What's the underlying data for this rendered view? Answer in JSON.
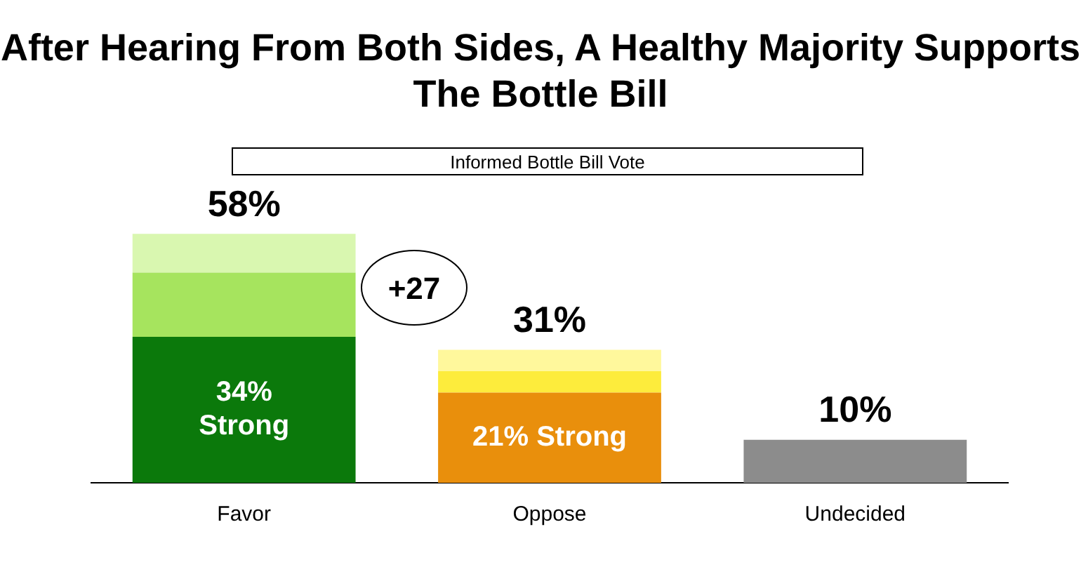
{
  "chart_data": {
    "type": "bar",
    "title": "After Hearing From Both Sides, A Healthy Majority Supports The Bottle Bill",
    "subtitle": "Informed Bottle Bill Vote",
    "categories": [
      "Favor",
      "Oppose",
      "Undecided"
    ],
    "stacked": true,
    "series": [
      {
        "colors": [
          "#0b790b",
          "#e98f0c",
          "#8c8c8c"
        ],
        "values": [
          34,
          21,
          10
        ],
        "value_labels": [
          "34%\nStrong",
          "21% Strong",
          null
        ]
      },
      {
        "colors": [
          "#a6e45e",
          "#fdec3c",
          "#8c8c8c"
        ],
        "values": [
          15,
          5,
          null
        ]
      },
      {
        "colors": [
          "#d9f7b0",
          "#fff89c",
          "#8c8c8c"
        ],
        "values": [
          9,
          5,
          null
        ]
      }
    ],
    "totals": [
      "58%",
      "31%",
      "10%"
    ],
    "annotations": [
      "+27"
    ],
    "legend": false,
    "grid": false,
    "tick_labels": "x"
  }
}
